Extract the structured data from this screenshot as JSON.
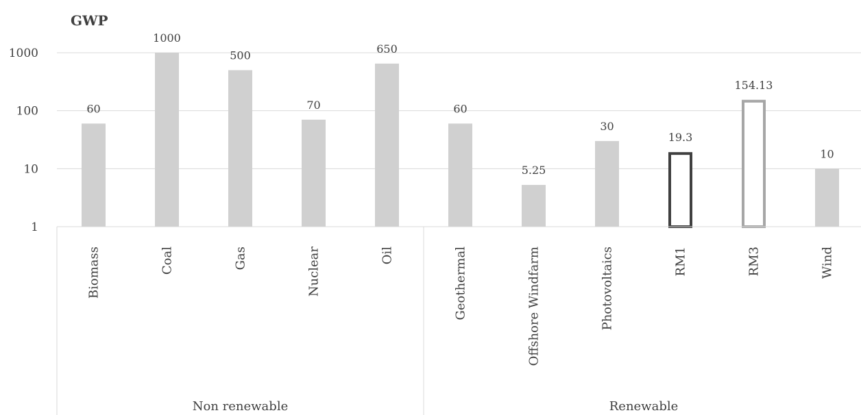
{
  "chart_data": {
    "type": "bar",
    "title": "GWP",
    "xlabel": "",
    "ylabel": "",
    "yscale": "log",
    "ylim": [
      1,
      1000
    ],
    "yticks": [
      1,
      10,
      100,
      1000
    ],
    "grid": true,
    "legend": "none",
    "groups": [
      {
        "name": "Non renewable",
        "categories": [
          "Biomass",
          "Coal",
          "Gas",
          "Nuclear",
          "Oil"
        ]
      },
      {
        "name": "Renewable",
        "categories": [
          "Geothermal",
          "Offshore Windfarm",
          "Photovoltaics",
          "RM1",
          "RM3",
          "Wind"
        ]
      }
    ],
    "categories": [
      "Biomass",
      "Coal",
      "Gas",
      "Nuclear",
      "Oil",
      "Geothermal",
      "Offshore Windfarm",
      "Photovoltaics",
      "RM1",
      "RM3",
      "Wind"
    ],
    "values": [
      60,
      1000,
      500,
      70,
      650,
      60,
      5.25,
      30,
      19.3,
      154.13,
      10
    ],
    "value_labels": [
      "60",
      "1000",
      "500",
      "70",
      "650",
      "60",
      "5.25",
      "30",
      "19.3",
      "154.13",
      "10"
    ],
    "bar_styles": [
      "filled",
      "filled",
      "filled",
      "filled",
      "filled",
      "filled",
      "filled",
      "filled",
      "outline-dark",
      "outline-gray",
      "filled"
    ],
    "colors": {
      "bar_fill": "#d0d0d0",
      "outline_dark": "#404040",
      "outline_gray": "#a6a6a6",
      "gridline": "#d9d9d9",
      "text": "#404040"
    }
  }
}
